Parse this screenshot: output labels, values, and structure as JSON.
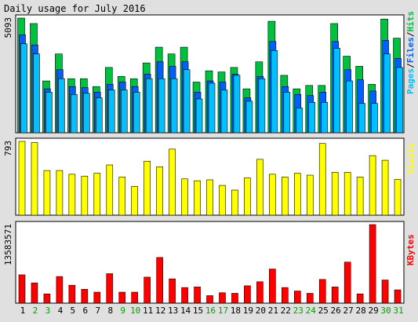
{
  "colors": {
    "background": "#e0e0e0",
    "panel": "#ffffff",
    "hits": "#00c040",
    "files": "#0060ff",
    "pages": "#00c0ff",
    "visits": "#ffff00",
    "kbytes": "#ff0000",
    "outline": "#000000",
    "weekday_label": "#000000",
    "weekend_label": "#00a000"
  },
  "chart_data": {
    "type": "bar",
    "title": "Daily usage for July 2016",
    "categories": [
      "1",
      "2",
      "3",
      "4",
      "5",
      "6",
      "7",
      "8",
      "9",
      "10",
      "11",
      "12",
      "13",
      "14",
      "15",
      "16",
      "17",
      "18",
      "19",
      "20",
      "21",
      "22",
      "23",
      "24",
      "25",
      "26",
      "27",
      "28",
      "29",
      "30",
      "31"
    ],
    "weekend_days": [
      "2",
      "3",
      "9",
      "10",
      "16",
      "17",
      "23",
      "24",
      "30",
      "31"
    ],
    "panels": [
      {
        "name": "hits-files-pages",
        "y_max_label": "5093",
        "y_max": 5093,
        "legend": {
          "pages": "Pages",
          "files": "Files",
          "hits": "Hits",
          "sep": "/"
        },
        "series": [
          {
            "name": "Hits",
            "values": [
              5093,
              4850,
              2300,
              3500,
              2400,
              2400,
              2050,
              2900,
              2500,
              2400,
              3100,
              3800,
              3500,
              3800,
              2250,
              2750,
              2700,
              2900,
              1950,
              3150,
              4950,
              2550,
              1950,
              2100,
              2100,
              4850,
              3400,
              2950,
              2150,
              5050,
              4200
            ]
          },
          {
            "name": "Files",
            "values": [
              4350,
              3900,
              1950,
              2800,
              2050,
              2000,
              1800,
              2150,
              2250,
              2050,
              2600,
              3150,
              2950,
              3150,
              1800,
              2300,
              2250,
              2600,
              1550,
              2500,
              4050,
              2050,
              1700,
              1650,
              1800,
              4050,
              2800,
              2350,
              1850,
              4100,
              3300
            ]
          },
          {
            "name": "Pages",
            "values": [
              3950,
              3500,
              1800,
              2400,
              1700,
              1750,
              1550,
              1900,
              1900,
              1800,
              2400,
              2400,
              2400,
              2800,
              1500,
              2200,
              1900,
              2550,
              1400,
              2400,
              3650,
              1800,
              1100,
              1350,
              1350,
              3750,
              2300,
              1300,
              1300,
              3500,
              2900
            ]
          }
        ]
      },
      {
        "name": "visits",
        "y_max_label": "793",
        "y_max": 793,
        "legend": {
          "visits": "Visits"
        },
        "series": [
          {
            "name": "Visits",
            "values": [
              793,
              780,
              480,
              480,
              440,
              420,
              450,
              540,
              410,
              310,
              580,
              520,
              710,
              390,
              370,
              380,
              320,
              270,
              400,
              600,
              440,
              410,
              450,
              430,
              770,
              460,
              460,
              410,
              640,
              590,
              385
            ]
          }
        ]
      },
      {
        "name": "kbytes",
        "y_max_label": "13583571",
        "y_max": 13583571,
        "legend": {
          "kbytes": "KBytes"
        },
        "series": [
          {
            "name": "KBytes",
            "values": [
              4900000,
              3500000,
              1600000,
              4600000,
              3100000,
              2400000,
              1900000,
              5100000,
              1900000,
              1900000,
              4500000,
              7900000,
              4200000,
              2700000,
              2800000,
              1300000,
              1800000,
              1700000,
              3000000,
              3700000,
              5900000,
              2700000,
              2100000,
              1700000,
              4100000,
              2800000,
              7100000,
              1600000,
              13583571,
              4000000,
              2300000
            ]
          }
        ]
      }
    ]
  }
}
